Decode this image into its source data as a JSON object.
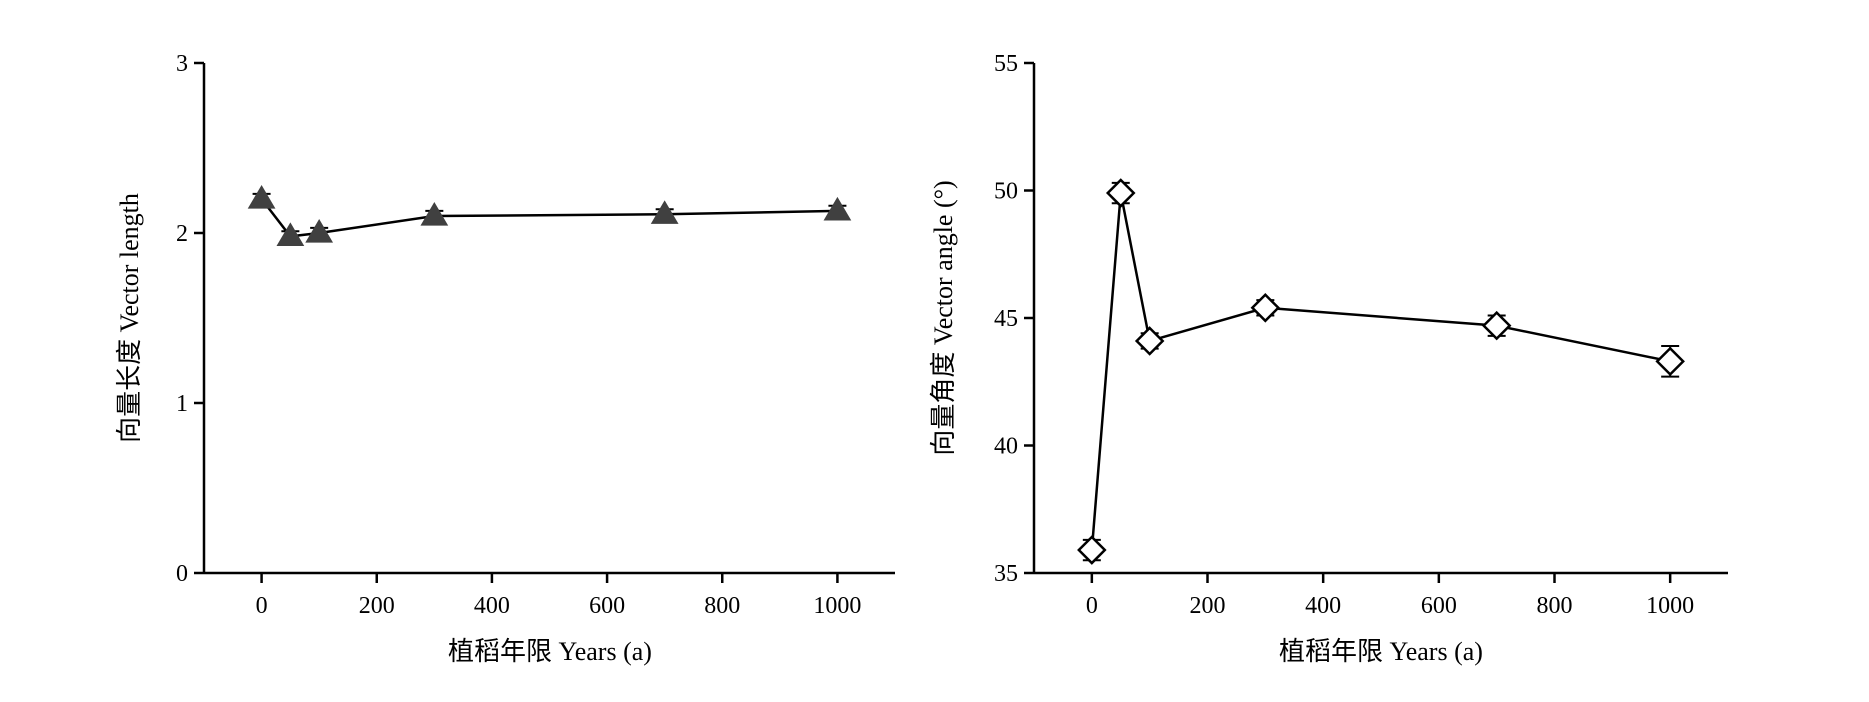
{
  "chart_data": [
    {
      "type": "line",
      "xlabel": "植稻年限 Years (a)",
      "ylabel": "向量长度 Vector length",
      "xlim": [
        -100,
        1100
      ],
      "ylim": [
        0,
        3
      ],
      "xticks": [
        0,
        200,
        400,
        600,
        800,
        1000
      ],
      "yticks": [
        0,
        1,
        2,
        3
      ],
      "marker": "triangle",
      "marker_color": "#404040",
      "series": [
        {
          "x": [
            0,
            50,
            100,
            300,
            700,
            1000
          ],
          "y": [
            2.2,
            1.98,
            2.0,
            2.1,
            2.11,
            2.13
          ],
          "error": [
            0.03,
            0.03,
            0.03,
            0.03,
            0.03,
            0.03
          ]
        }
      ],
      "grid": false
    },
    {
      "type": "line",
      "xlabel": "植稻年限 Years (a)",
      "ylabel": "向量角度 Vector angle (°)",
      "xlim": [
        -100,
        1100
      ],
      "ylim": [
        35,
        55
      ],
      "xticks": [
        0,
        200,
        400,
        600,
        800,
        1000
      ],
      "yticks": [
        35,
        40,
        45,
        50,
        55
      ],
      "marker": "diamond-open",
      "marker_color": "#000000",
      "series": [
        {
          "x": [
            0,
            50,
            100,
            300,
            700,
            1000
          ],
          "y": [
            35.9,
            49.9,
            44.1,
            45.4,
            44.7,
            43.3
          ],
          "error": [
            0.4,
            0.4,
            0.3,
            0.3,
            0.4,
            0.6
          ]
        }
      ],
      "grid": false
    }
  ]
}
